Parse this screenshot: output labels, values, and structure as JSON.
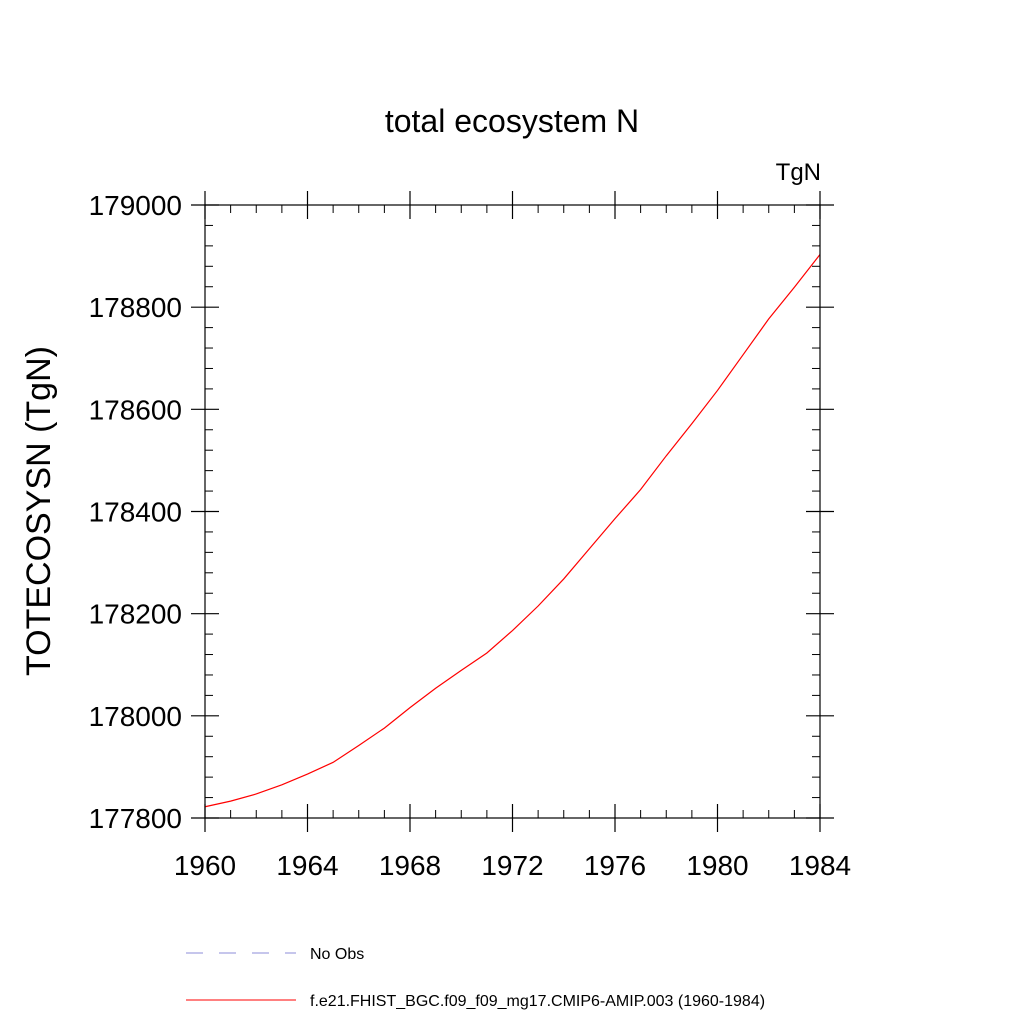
{
  "chart_data": {
    "type": "line",
    "title": "total ecosystem N",
    "units_label": "TgN",
    "ylabel": "TOTECOSYSN  (TgN)",
    "xlabel": "",
    "xlim": [
      1960,
      1984
    ],
    "ylim": [
      177800,
      179000
    ],
    "x_ticks": [
      1960,
      1964,
      1968,
      1972,
      1976,
      1980,
      1984
    ],
    "x_minor_step": 1,
    "y_ticks": [
      177800,
      178000,
      178200,
      178400,
      178600,
      178800,
      179000
    ],
    "y_minor_step": 40,
    "grid": false,
    "series": [
      {
        "name": "f.e21.FHIST_BGC.f09_f09_mg17.CMIP6-AMIP.003 (1960-1984)",
        "color": "#ff0000",
        "style": "solid",
        "x": [
          1960,
          1961,
          1962,
          1963,
          1964,
          1965,
          1966,
          1967,
          1968,
          1969,
          1970,
          1971,
          1972,
          1973,
          1974,
          1975,
          1976,
          1977,
          1978,
          1979,
          1980,
          1981,
          1982,
          1983,
          1984
        ],
        "values": [
          177822,
          177833,
          177847,
          177865,
          177886,
          177909,
          177942,
          177976,
          178016,
          178054,
          178089,
          178123,
          178167,
          178215,
          178268,
          178327,
          178386,
          178443,
          178509,
          178572,
          178637,
          178707,
          178777,
          178839,
          178903
        ]
      }
    ],
    "legend": {
      "placement": "bottom",
      "entries": [
        {
          "label": "No Obs",
          "color": "#8c8cd9",
          "style": "dashed"
        },
        {
          "label": "f.e21.FHIST_BGC.f09_f09_mg17.CMIP6-AMIP.003 (1960-1984)",
          "color": "#ff0000",
          "style": "solid"
        }
      ]
    }
  }
}
